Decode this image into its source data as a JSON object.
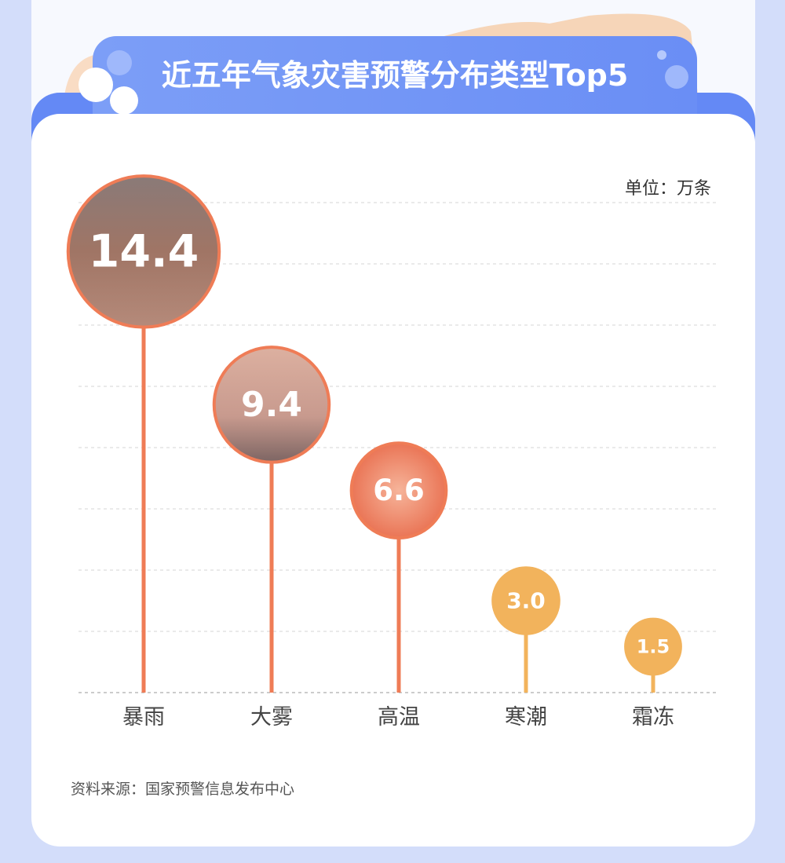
{
  "chart_data": {
    "type": "lollipop",
    "title": "近五年气象灾害预警分布类型Top5",
    "unit": "单位：万条",
    "categories": [
      "暴雨",
      "大雾",
      "高温",
      "寒潮",
      "霜冻"
    ],
    "values": [
      14.4,
      9.4,
      6.6,
      3.0,
      1.5
    ],
    "value_labels": [
      "14.4",
      "9.4",
      "6.6",
      "3.0",
      "1.5"
    ],
    "ylim": [
      0,
      16
    ],
    "grid": true,
    "colors": [
      "#ef7c56",
      "#ef7c56",
      "#ef7c56",
      "#f2b35c",
      "#f2b35c"
    ],
    "source": "资料来源：国家预警信息发布中心"
  }
}
